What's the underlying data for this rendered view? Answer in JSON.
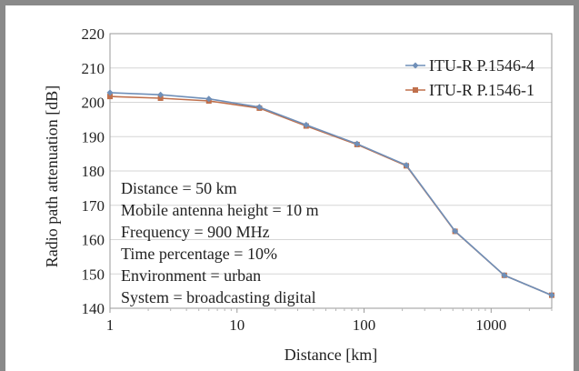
{
  "chart_data": {
    "type": "line",
    "xlabel": "Distance [km]",
    "ylabel": "Radio path attenuation [dB]",
    "xscale": "log",
    "xlim": [
      1,
      3000
    ],
    "ylim": [
      140,
      220
    ],
    "grid": "horizontal",
    "legend_position": "top-right",
    "x_ticks": [
      1,
      10,
      100,
      1000
    ],
    "x_tick_labels": [
      "1",
      "10",
      "100",
      "1000"
    ],
    "y_ticks": [
      140,
      150,
      160,
      170,
      180,
      190,
      200,
      210,
      220
    ],
    "y_tick_labels": [
      "140",
      "150",
      "160",
      "170",
      "180",
      "190",
      "200",
      "210",
      "220"
    ],
    "series": [
      {
        "name": "ITU-R P.1546-4",
        "color": "#6f8fb8",
        "marker": "diamond",
        "x": [
          1,
          2.5,
          6,
          15,
          35,
          88,
          215,
          520,
          1270,
          3000
        ],
        "y": [
          202.8,
          202.2,
          201.0,
          198.6,
          193.4,
          187.9,
          181.7,
          162.5,
          149.6,
          143.8
        ]
      },
      {
        "name": "ITU-R P.1546-1",
        "color": "#c0704c",
        "marker": "square",
        "x": [
          1,
          2.5,
          6,
          15,
          35,
          88,
          215,
          520,
          1270,
          3000
        ],
        "y": [
          201.7,
          201.2,
          200.4,
          198.3,
          193.1,
          187.7,
          181.5,
          162.4,
          149.6,
          143.8
        ]
      }
    ],
    "annotation_lines": [
      "Distance = 50 km",
      "Mobile antenna height = 10 m",
      "Frequency = 900 MHz",
      "Time percentage = 10%",
      "Environment = urban",
      "System = broadcasting digital"
    ]
  }
}
